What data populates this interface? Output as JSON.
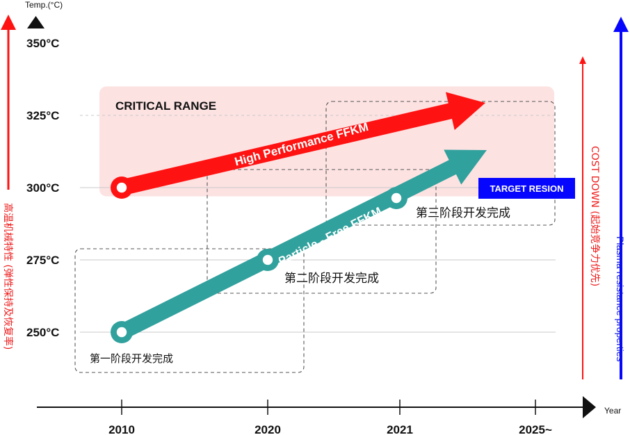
{
  "colors": {
    "red": "#ff1212",
    "teal": "#30a19d",
    "critical_fill": "#fde2e2",
    "blue": "#0606ff",
    "axis": "#111111"
  },
  "labels": {
    "y_unit": "Temp.(°C)",
    "x_unit": "Year",
    "critical_range": "CRITICAL RANGE",
    "target_resion": "TARGET RESION",
    "left_side": "高温机械特性 (弹性保持及恢复率)",
    "cost_down": "COST DOWN (起始竞争力优先)",
    "plasma": "Plasma resistance properties",
    "phase_1": "第一阶段开发完成",
    "phase_2": "第二阶段开发完成",
    "phase_3": "第三阶段开发完成"
  },
  "chart_data": {
    "type": "line",
    "title": "",
    "xlabel": "Year",
    "ylabel": "Temp.(°C)",
    "categories": [
      "2010",
      "2020",
      "2021",
      "2025~"
    ],
    "y_ticks": [
      "250°C",
      "275°C",
      "300°C",
      "325°C",
      "350°C"
    ],
    "ylim": [
      250,
      350
    ],
    "critical_range": [
      297,
      335
    ],
    "series": [
      {
        "name": "High Performance FFKM",
        "color": "#ff1212",
        "points": [
          {
            "x": "2010",
            "y": 300
          },
          {
            "x": "2025~",
            "y": 330
          }
        ]
      },
      {
        "name": "Particle - Free FFKM",
        "color": "#30a19d",
        "points": [
          {
            "x": "2010",
            "y": 250
          },
          {
            "x": "2020",
            "y": 275
          },
          {
            "x": "2021",
            "y": 296
          },
          {
            "x": "2025~",
            "y": 314
          }
        ]
      }
    ],
    "annotations": [
      "CRITICAL RANGE",
      "TARGET RESION",
      "第一阶段开发完成",
      "第二阶段开发完成",
      "第三阶段开发完成"
    ]
  }
}
